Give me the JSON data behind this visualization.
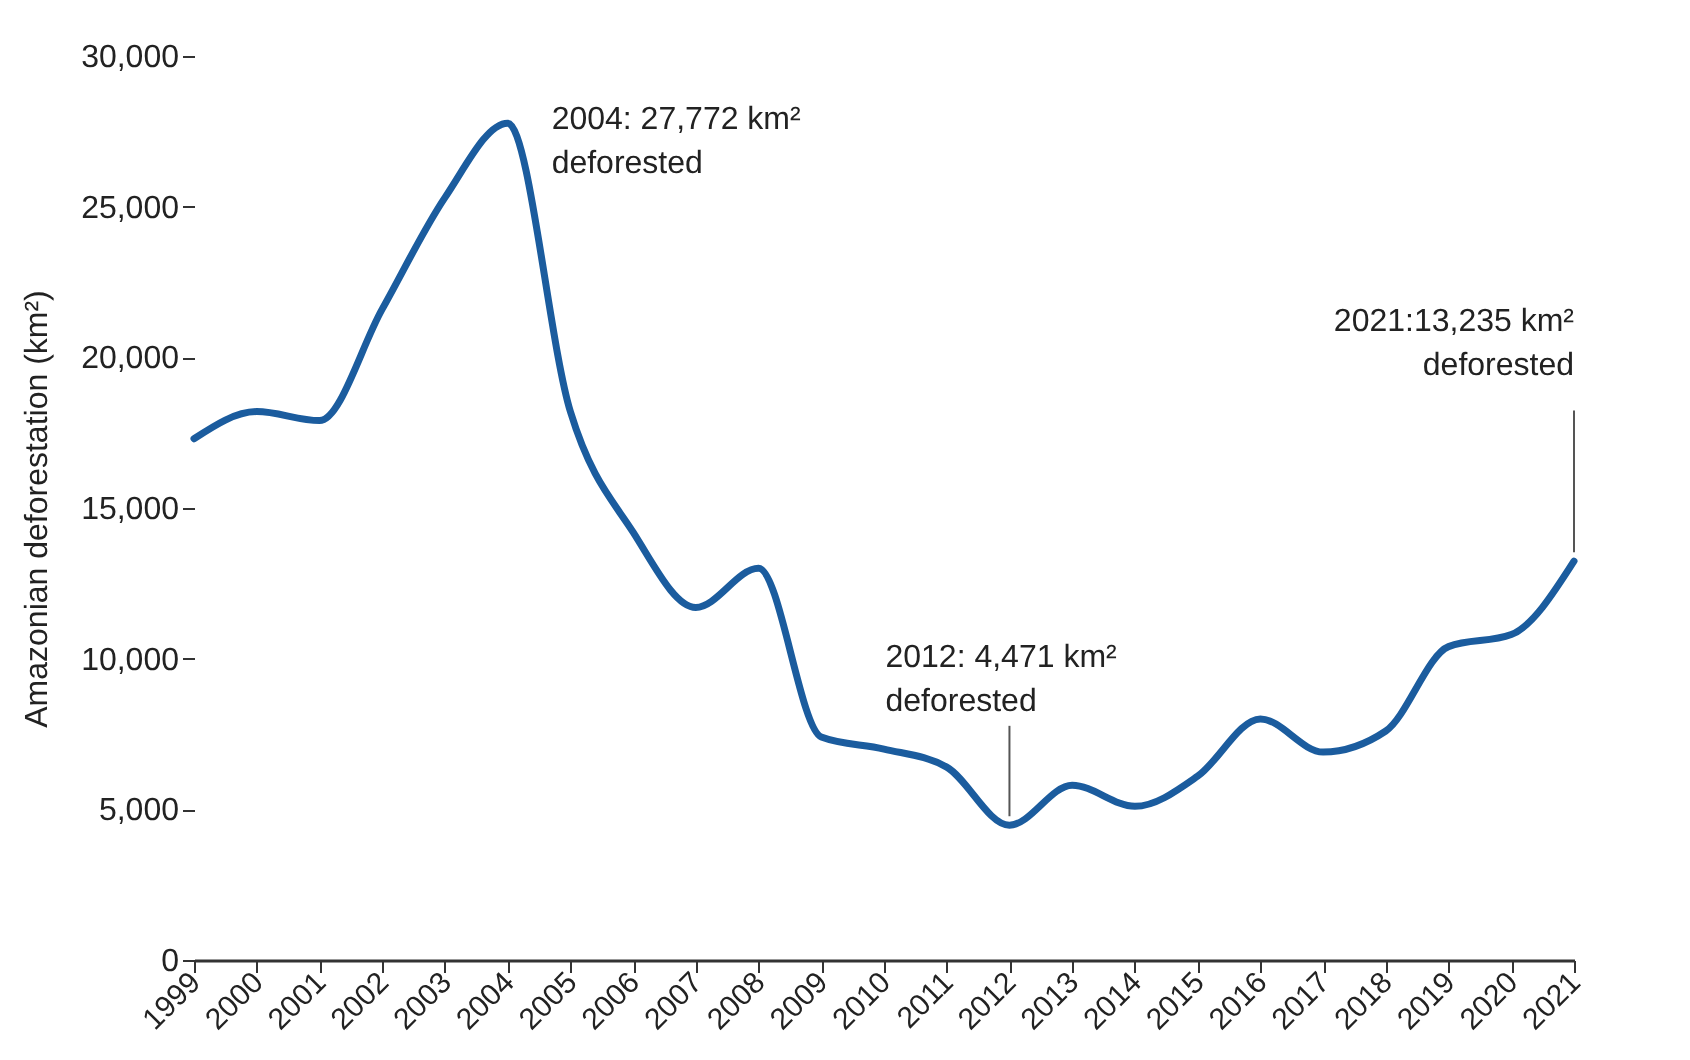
{
  "chart_data": {
    "type": "line",
    "ylabel": "Amazonian deforestation (km²)",
    "categories": [
      "1999",
      "2000",
      "2001",
      "2002",
      "2003",
      "2004",
      "2005",
      "2006",
      "2007",
      "2008",
      "2009",
      "2010",
      "2011",
      "2012",
      "2013",
      "2014",
      "2015",
      "2016",
      "2017",
      "2018",
      "2019",
      "2020",
      "2021"
    ],
    "series": [
      {
        "color": "#1b5c9e",
        "values": [
          17300,
          18200,
          17900,
          21600,
          25300,
          27772,
          18200,
          14200,
          11700,
          13000,
          7400,
          7000,
          6400,
          4471,
          5800,
          5100,
          6100,
          8000,
          6900,
          7600,
          10400,
          10800,
          13235
        ]
      }
    ],
    "ylim": [
      0,
      30000
    ],
    "yticks": [
      0,
      {
        "value": 5000,
        "label": "5,000"
      },
      {
        "value": 10000,
        "label": "10,000"
      },
      {
        "value": 15000,
        "label": "15,000"
      },
      {
        "value": 20000,
        "label": "20,000"
      },
      {
        "value": 25000,
        "label": "25,000"
      },
      {
        "value": 30000,
        "label": "30,000"
      }
    ],
    "grid": false,
    "line_style": "solid",
    "marker": "none",
    "annotations": [
      {
        "text": "2004: 27,772 km²\ndeforested",
        "x": "2004",
        "y": 27772
      },
      {
        "text": "2012: 4,471 km²\ndeforested",
        "x": "2012",
        "y": 4471
      },
      {
        "text": "2021:13,235 km²\ndeforested",
        "x": "2021",
        "y": 13235
      }
    ]
  }
}
